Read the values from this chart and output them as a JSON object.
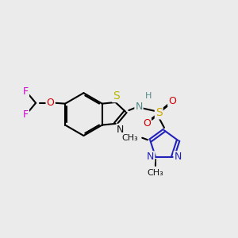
{
  "background_color": "#ebebeb",
  "fig_width": 3.0,
  "fig_height": 3.0,
  "dpi": 100,
  "xlim": [
    0.3,
    3.8
  ],
  "ylim": [
    0.5,
    2.8
  ]
}
